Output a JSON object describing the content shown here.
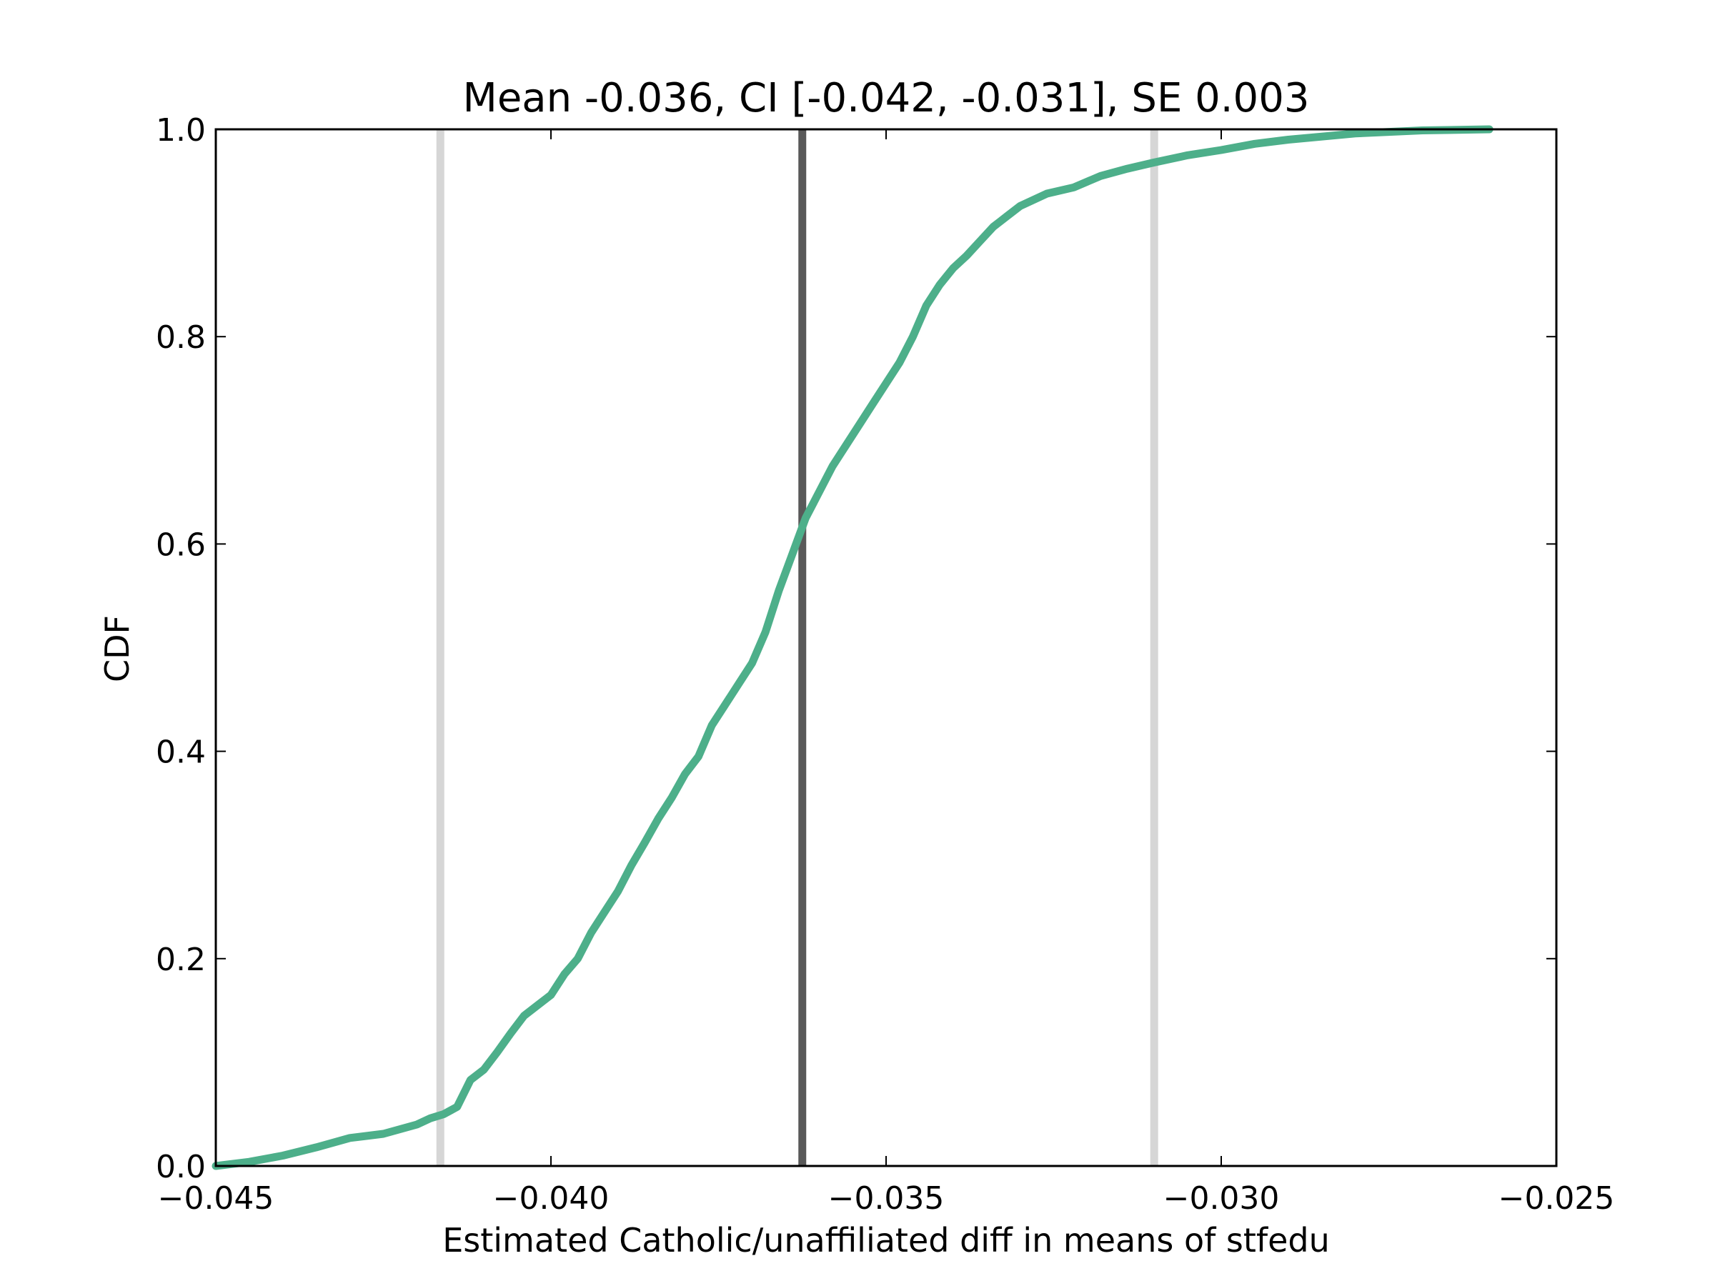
{
  "chart_data": {
    "type": "line",
    "title": "Mean -0.036, CI [-0.042, -0.031], SE 0.003",
    "xlabel": "Estimated Catholic/unaffiliated diff in means of stfedu",
    "ylabel": "CDF",
    "xlim": [
      -0.045,
      -0.025
    ],
    "ylim": [
      0.0,
      1.0
    ],
    "grid": false,
    "legend": "none",
    "xticks": [
      -0.045,
      -0.04,
      -0.035,
      -0.03,
      -0.025
    ],
    "xtick_labels": [
      "−0.045",
      "−0.040",
      "−0.035",
      "−0.030",
      "−0.025"
    ],
    "yticks": [
      0.0,
      0.2,
      0.4,
      0.6,
      0.8,
      1.0
    ],
    "ytick_labels": [
      "0.0",
      "0.2",
      "0.4",
      "0.6",
      "0.8",
      "1.0"
    ],
    "vlines": [
      {
        "x": -0.04165,
        "role": "ci-lower",
        "color": "#d6d6d6"
      },
      {
        "x": -0.03625,
        "role": "mean",
        "color": "#595959"
      },
      {
        "x": -0.031,
        "role": "ci-upper",
        "color": "#d6d6d6"
      }
    ],
    "series": [
      {
        "color": "#4daf8a",
        "x": [
          -0.045,
          -0.0445,
          -0.044,
          -0.0435,
          -0.043,
          -0.0425,
          -0.042,
          -0.0418,
          -0.0416,
          -0.0414,
          -0.0412,
          -0.041,
          -0.0408,
          -0.0406,
          -0.0404,
          -0.0402,
          -0.04,
          -0.0398,
          -0.0396,
          -0.0394,
          -0.0392,
          -0.039,
          -0.0388,
          -0.0386,
          -0.0384,
          -0.0382,
          -0.038,
          -0.0378,
          -0.0376,
          -0.0374,
          -0.0372,
          -0.037,
          -0.0368,
          -0.0366,
          -0.0364,
          -0.0362,
          -0.036,
          -0.0358,
          -0.0356,
          -0.0354,
          -0.0352,
          -0.035,
          -0.0348,
          -0.0346,
          -0.0344,
          -0.0342,
          -0.034,
          -0.0338,
          -0.0336,
          -0.0334,
          -0.0332,
          -0.033,
          -0.0326,
          -0.0322,
          -0.0318,
          -0.0314,
          -0.031,
          -0.0305,
          -0.03,
          -0.0295,
          -0.029,
          -0.0285,
          -0.028,
          -0.027,
          -0.026
        ],
        "y": [
          0.0,
          0.004,
          0.01,
          0.018,
          0.027,
          0.031,
          0.04,
          0.046,
          0.05,
          0.057,
          0.083,
          0.093,
          0.11,
          0.128,
          0.145,
          0.155,
          0.165,
          0.185,
          0.2,
          0.225,
          0.245,
          0.265,
          0.29,
          0.312,
          0.335,
          0.355,
          0.378,
          0.395,
          0.425,
          0.445,
          0.465,
          0.485,
          0.515,
          0.555,
          0.59,
          0.625,
          0.65,
          0.675,
          0.695,
          0.715,
          0.735,
          0.755,
          0.775,
          0.8,
          0.83,
          0.85,
          0.866,
          0.878,
          0.892,
          0.906,
          0.916,
          0.926,
          0.938,
          0.944,
          0.955,
          0.962,
          0.968,
          0.975,
          0.98,
          0.986,
          0.99,
          0.993,
          0.996,
          0.999,
          1.0
        ]
      }
    ]
  }
}
